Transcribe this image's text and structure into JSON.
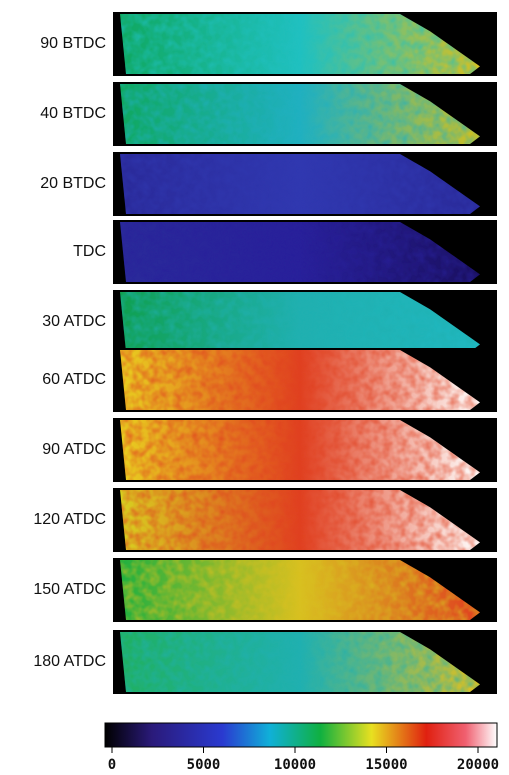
{
  "panels": [
    "90 BTDC",
    "40 BTDC",
    "20 BTDC",
    "TDC",
    "30 ATDC",
    "60 ATDC",
    "90 ATDC",
    "120 ATDC",
    "150 ATDC",
    "180 ATDC"
  ],
  "colorbar": {
    "lim": [
      0,
      20000
    ],
    "ticks": [
      0,
      5000,
      10000,
      15000,
      20000
    ]
  }
}
